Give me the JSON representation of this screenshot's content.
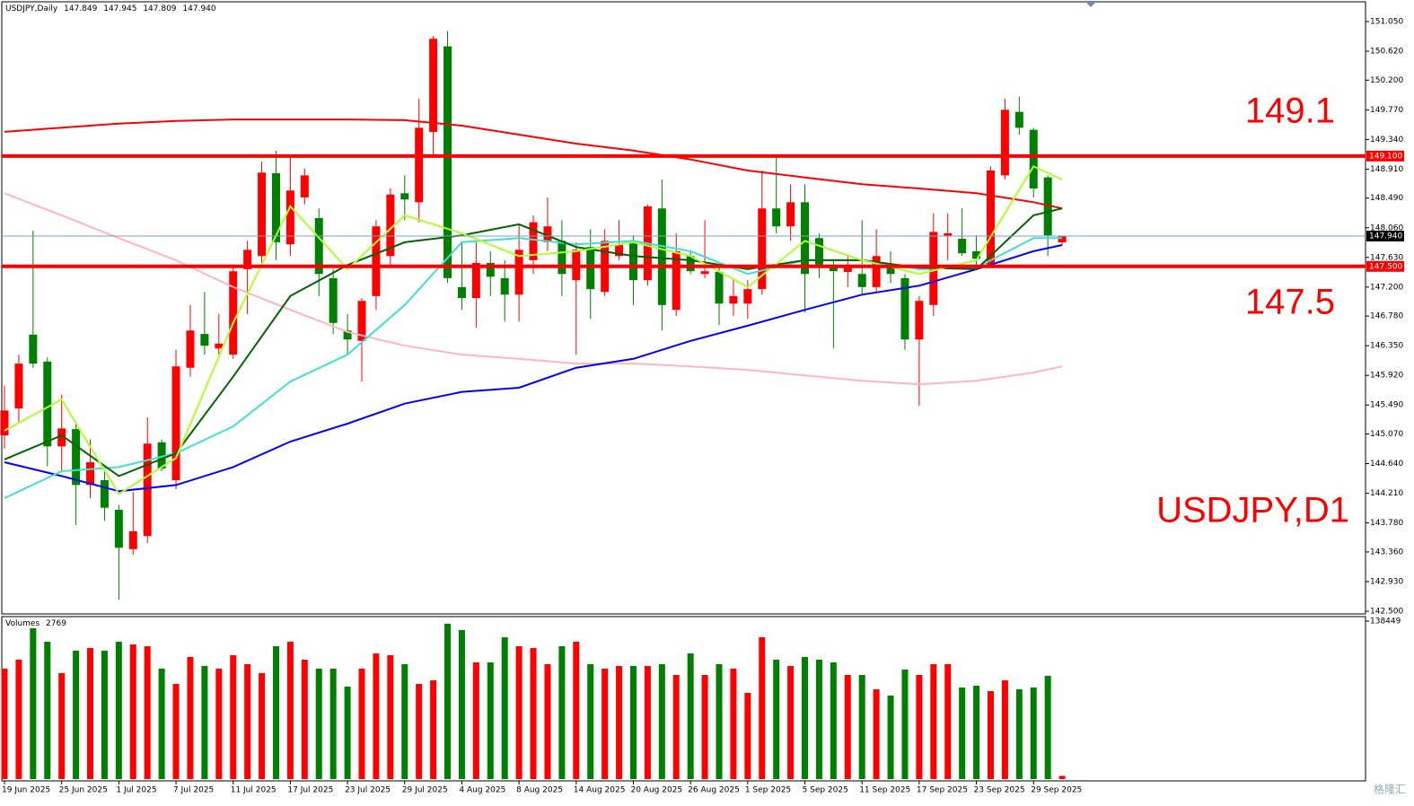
{
  "chart_data": {
    "type": "candlestick",
    "symbol": "USDJPY,Daily",
    "categories": [
      "19 Jun 2025",
      null,
      null,
      null,
      "25 Jun 2025",
      null,
      null,
      null,
      "1 Jul 2025",
      null,
      null,
      null,
      "7 Jul 2025",
      null,
      null,
      null,
      "11 Jul 2025",
      null,
      null,
      null,
      "17 Jul 2025",
      null,
      null,
      null,
      "23 Jul 2025",
      null,
      null,
      null,
      "29 Jul 2025",
      null,
      null,
      null,
      "4 Aug 2025",
      null,
      null,
      null,
      "8 Aug 2025",
      null,
      null,
      null,
      "14 Aug 2025",
      null,
      null,
      null,
      "20 Aug 2025",
      null,
      null,
      null,
      "26 Aug 2025",
      null,
      null,
      null,
      "1 Sep 2025",
      null,
      null,
      null,
      "5 Sep 2025",
      null,
      null,
      null,
      "11 Sep 2025",
      null,
      null,
      null,
      "17 Sep 2025",
      null,
      null,
      null,
      "23 Sep 2025",
      null,
      null,
      null,
      "29 Sep 2025",
      null,
      null
    ],
    "open": [
      145.05,
      145.44,
      146.51,
      146.12,
      144.89,
      145.14,
      144.33,
      144.4,
      143.97,
      143.4,
      143.59,
      144.95,
      144.4,
      146.03,
      146.52,
      146.31,
      146.22,
      147.46,
      147.65,
      148.85,
      147.82,
      148.5,
      148.2,
      147.33,
      146.57,
      146.42,
      147.07,
      147.65,
      148.56,
      148.43,
      149.45,
      150.69,
      147.2,
      147.04,
      147.55,
      147.33,
      147.09,
      147.59,
      147.85,
      147.87,
      147.3,
      147.78,
      147.13,
      147.65,
      147.87,
      147.3,
      148.34,
      146.87,
      147.65,
      147.39,
      147.42,
      146.96,
      146.96,
      147.17,
      148.34,
      148.08,
      148.43,
      147.91,
      147.52,
      147.42,
      147.39,
      147.2,
      147.52,
      147.33,
      146.44,
      146.94,
      147.94,
      147.9,
      147.72,
      147.52,
      148.82,
      149.74,
      149.48,
      148.79,
      147.849
    ],
    "high": [
      145.77,
      146.22,
      148.02,
      146.18,
      145.64,
      145.25,
      144.99,
      144.53,
      144.04,
      144.23,
      145.31,
      144.99,
      146.29,
      146.94,
      147.13,
      146.81,
      147.52,
      147.87,
      149.02,
      149.18,
      149.08,
      148.92,
      148.34,
      147.46,
      146.81,
      147.04,
      148.17,
      148.63,
      148.82,
      149.93,
      150.84,
      150.91,
      147.85,
      147.85,
      147.72,
      147.59,
      148.11,
      148.24,
      148.5,
      148.17,
      147.85,
      148.04,
      148.04,
      148.17,
      147.95,
      148.4,
      148.76,
      147.98,
      147.72,
      148.17,
      147.48,
      147.33,
      147.3,
      148.89,
      149.12,
      148.69,
      148.69,
      147.98,
      147.59,
      147.65,
      148.17,
      148.04,
      147.72,
      147.39,
      147.07,
      148.27,
      148.27,
      148.34,
      147.95,
      148.95,
      149.93,
      149.96,
      149.51,
      148.82,
      147.945
    ],
    "low": [
      144.86,
      145.25,
      146.03,
      144.6,
      144.53,
      143.75,
      144.14,
      143.81,
      142.67,
      143.32,
      143.49,
      144.53,
      144.27,
      145.9,
      146.22,
      146.22,
      146.16,
      146.81,
      147.52,
      147.59,
      147.65,
      148.4,
      147.07,
      146.52,
      146.22,
      145.83,
      146.87,
      147.52,
      148.17,
      148.14,
      149.08,
      147.26,
      146.87,
      146.61,
      147.07,
      146.7,
      146.7,
      147.39,
      147.72,
      147.07,
      146.22,
      146.74,
      147.07,
      147.59,
      146.94,
      147.22,
      146.57,
      146.78,
      147.39,
      147.33,
      146.65,
      146.78,
      146.74,
      147.09,
      147.98,
      147.87,
      146.83,
      147.33,
      146.31,
      147.2,
      147.09,
      147.13,
      147.26,
      146.29,
      145.48,
      146.78,
      147.59,
      147.65,
      147.48,
      147.48,
      148.76,
      149.41,
      148.5,
      147.65,
      147.809
    ],
    "close": [
      145.41,
      146.09,
      146.09,
      144.89,
      145.15,
      144.33,
      144.66,
      144.0,
      143.42,
      143.66,
      144.93,
      144.57,
      146.05,
      146.57,
      146.35,
      146.38,
      147.43,
      147.74,
      148.86,
      147.85,
      148.6,
      148.82,
      147.39,
      146.68,
      146.44,
      147.0,
      148.08,
      148.54,
      148.47,
      149.51,
      150.8,
      147.33,
      147.04,
      147.55,
      147.35,
      147.09,
      147.74,
      148.14,
      148.08,
      147.39,
      147.74,
      147.17,
      147.87,
      147.81,
      147.3,
      148.37,
      146.94,
      147.72,
      147.43,
      147.43,
      146.96,
      147.07,
      147.17,
      148.34,
      148.08,
      148.43,
      147.39,
      147.52,
      147.43,
      147.48,
      147.2,
      147.65,
      147.39,
      146.44,
      147.0,
      148.0,
      147.98,
      147.69,
      147.61,
      148.89,
      149.77,
      149.51,
      148.63,
      147.95,
      147.94
    ],
    "up_color": "#ff0000",
    "down_color": "#008000",
    "ylim": [
      142.5,
      151.05
    ],
    "yticks": [
      {
        "value": 151.05,
        "label": "151.050"
      },
      {
        "value": 150.62,
        "label": "150.620"
      },
      {
        "value": 150.2,
        "label": "150.200"
      },
      {
        "value": 149.77,
        "label": "149.770"
      },
      {
        "value": 149.34,
        "label": "149.340"
      },
      {
        "value": 148.91,
        "label": "148.910"
      },
      {
        "value": 148.49,
        "label": "148.490"
      },
      {
        "value": 148.06,
        "label": "148.060"
      },
      {
        "value": 147.63,
        "label": "147.630"
      },
      {
        "value": 147.2,
        "label": "147.200"
      },
      {
        "value": 146.78,
        "label": "146.780"
      },
      {
        "value": 146.35,
        "label": "146.350"
      },
      {
        "value": 145.92,
        "label": "145.920"
      },
      {
        "value": 145.49,
        "label": "145.490"
      },
      {
        "value": 145.07,
        "label": "145.070"
      },
      {
        "value": 144.64,
        "label": "144.640"
      },
      {
        "value": 144.21,
        "label": "144.210"
      },
      {
        "value": 143.78,
        "label": "143.780"
      },
      {
        "value": 143.36,
        "label": "143.360"
      },
      {
        "value": 142.93,
        "label": "142.930"
      },
      {
        "value": 142.5,
        "label": "142.500"
      }
    ],
    "hlines": [
      {
        "value": 149.1,
        "label": "149.100",
        "annotation": "149.1",
        "color": "#ff0000"
      },
      {
        "value": 147.5,
        "label": "147.500",
        "annotation": "147.5",
        "color": "#ff0000"
      }
    ],
    "last_price": {
      "value": 147.94,
      "label": "147.940",
      "color": "#000000"
    },
    "annotation": "USDJPY,D1",
    "moving_averages": {
      "x": [
        0,
        4,
        8,
        12,
        16,
        20,
        24,
        28,
        32,
        36,
        40,
        44,
        48,
        52,
        56,
        60,
        64,
        68,
        72,
        74
      ],
      "series": [
        {
          "color": "#ff0000",
          "values": [
            149.45,
            149.51,
            149.57,
            149.61,
            149.63,
            149.63,
            149.63,
            149.62,
            149.54,
            149.41,
            149.28,
            149.18,
            149.05,
            148.89,
            148.79,
            148.69,
            148.63,
            148.56,
            148.43,
            148.34
          ]
        },
        {
          "color": "#ffb6c1",
          "values": [
            148.56,
            148.24,
            147.91,
            147.59,
            147.2,
            146.87,
            146.55,
            146.35,
            146.22,
            146.16,
            146.09,
            146.09,
            146.05,
            146.0,
            145.92,
            145.84,
            145.79,
            145.84,
            145.96,
            146.05
          ]
        },
        {
          "color": "#0000ff",
          "values": [
            144.66,
            144.46,
            144.24,
            144.33,
            144.59,
            144.96,
            145.22,
            145.51,
            145.68,
            145.74,
            146.03,
            146.16,
            146.42,
            146.64,
            146.87,
            147.09,
            147.22,
            147.46,
            147.72,
            147.81
          ]
        },
        {
          "color": "#40e0d0",
          "values": [
            144.14,
            144.53,
            144.59,
            144.79,
            145.18,
            145.83,
            146.22,
            146.94,
            147.85,
            147.91,
            147.82,
            147.87,
            147.72,
            147.39,
            147.59,
            147.59,
            147.46,
            147.48,
            147.91,
            147.91
          ]
        },
        {
          "color": "#006400",
          "values": [
            144.7,
            145.05,
            144.46,
            144.79,
            145.9,
            147.07,
            147.52,
            147.85,
            147.95,
            148.11,
            147.78,
            147.65,
            147.59,
            147.46,
            147.59,
            147.59,
            147.48,
            147.46,
            148.24,
            148.34
          ]
        },
        {
          "color": "#adff2f",
          "values": [
            145.12,
            145.57,
            144.2,
            144.72,
            146.68,
            148.37,
            147.46,
            148.24,
            147.98,
            147.65,
            147.72,
            147.85,
            147.65,
            147.2,
            147.87,
            147.59,
            147.39,
            147.59,
            148.95,
            148.76
          ]
        }
      ]
    },
    "volume": {
      "title": "Volumes",
      "ylim": [
        0,
        138449
      ],
      "yticks": [
        138449
      ],
      "values": [
        96750,
        104620,
        132150,
        120350,
        92820,
        112490,
        114850,
        112490,
        120350,
        117990,
        116420,
        96750,
        83380,
        106980,
        99110,
        96750,
        108550,
        100680,
        92820,
        116420,
        120350,
        104620,
        96750,
        96750,
        81020,
        96750,
        110120,
        108550,
        100680,
        83380,
        86530,
        136080,
        130580,
        102260,
        102260,
        124280,
        116420,
        114850,
        100680,
        116420,
        120350,
        100680,
        96750,
        99110,
        99110,
        99110,
        100680,
        91250,
        110120,
        91250,
        100680,
        96750,
        75510,
        124280,
        104620,
        99110,
        106980,
        104620,
        102260,
        91250,
        91250,
        78660,
        73150,
        95970,
        91250,
        100680,
        100680,
        80230,
        81810,
        77090,
        86530,
        78660,
        80230,
        90460,
        2769
      ]
    },
    "watermark": "格隆汇"
  }
}
